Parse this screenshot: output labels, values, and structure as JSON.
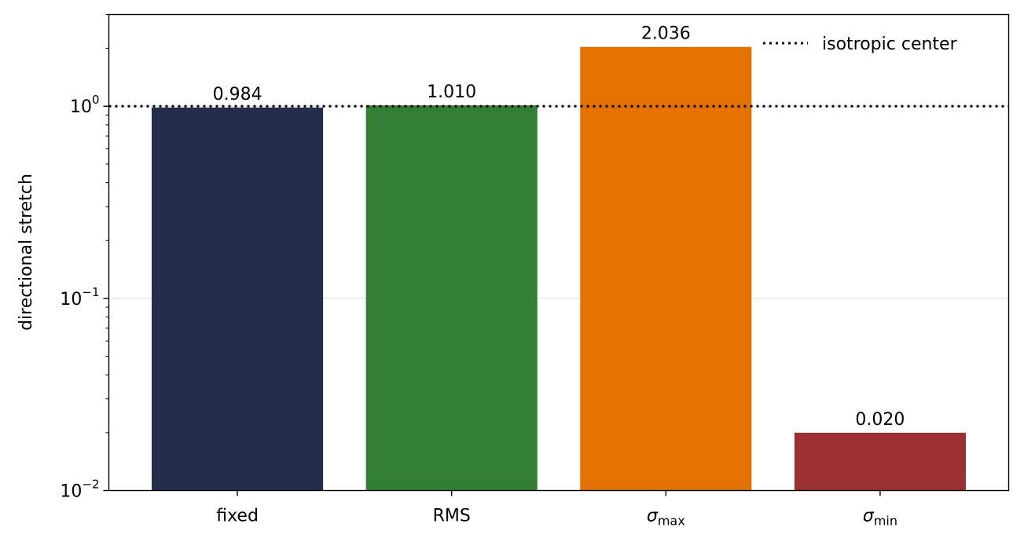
{
  "chart_data": {
    "type": "bar",
    "categories": [
      "fixed",
      "RMS",
      "σmax",
      "σmin"
    ],
    "category_labels": [
      {
        "base": "fixed",
        "sub": ""
      },
      {
        "base": "RMS",
        "sub": ""
      },
      {
        "base": "σ",
        "sub": "max"
      },
      {
        "base": "σ",
        "sub": "min"
      }
    ],
    "values": [
      0.984,
      1.01,
      2.036,
      0.02
    ],
    "value_labels": [
      "0.984",
      "1.010",
      "2.036",
      "0.020"
    ],
    "colors": [
      "#232c4a",
      "#317e34",
      "#e37203",
      "#9b3032"
    ],
    "title": "",
    "xlabel": "",
    "ylabel": "directional stretch",
    "yscale": "log",
    "ylim": [
      0.01,
      3.0
    ],
    "yticks": [
      {
        "value": 0.01,
        "base": "10",
        "exp": "−2"
      },
      {
        "value": 0.1,
        "base": "10",
        "exp": "−1"
      },
      {
        "value": 1,
        "base": "10",
        "exp": "0"
      }
    ],
    "reference_line": {
      "value": 1.0,
      "style": "dotted",
      "label": "isotropic center"
    },
    "grid": "y-major-faint",
    "legend": {
      "position": "top-right",
      "entries": [
        "isotropic center"
      ]
    }
  }
}
